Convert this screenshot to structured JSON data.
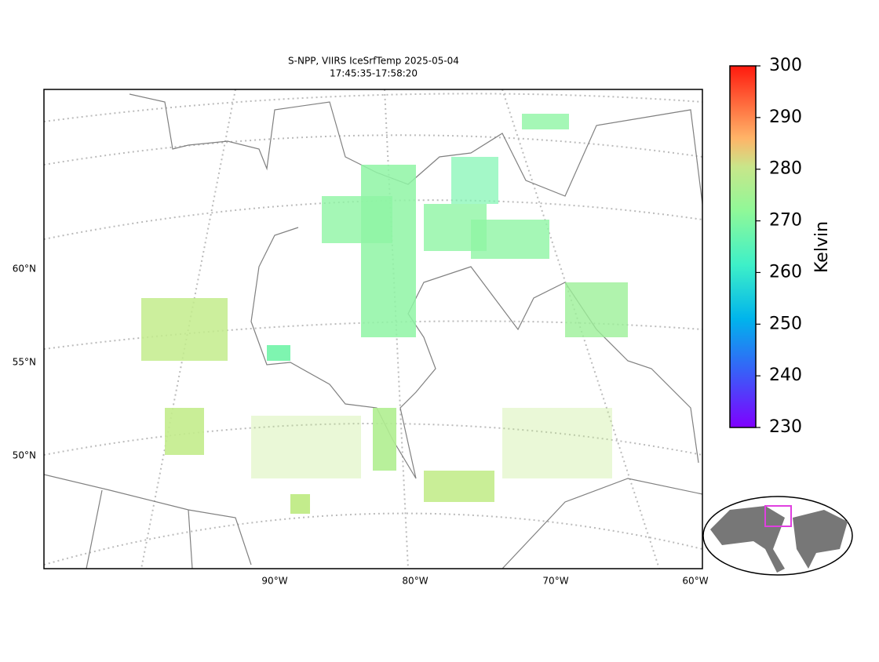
{
  "title_lines": [
    "S-NPP, VIIRS IceSrfTemp 2025-05-04",
    "17:45:35-17:58:20"
  ],
  "lat_labels": [
    "60°N",
    "55°N",
    "50°N"
  ],
  "lon_labels": [
    "90°W",
    "80°W",
    "70°W",
    "60°W"
  ],
  "colorbar": {
    "label": "Kelvin",
    "lim": [
      230,
      300
    ],
    "ticks": [
      230,
      240,
      250,
      260,
      270,
      280,
      290,
      300
    ]
  }
}
